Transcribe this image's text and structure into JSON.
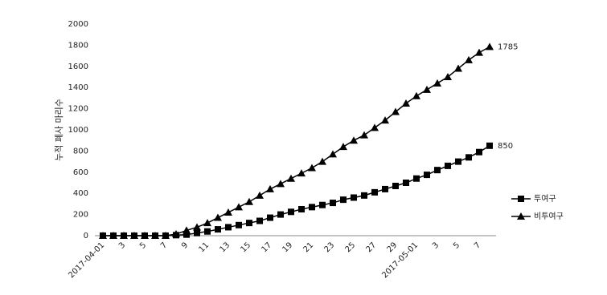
{
  "chart_data": {
    "type": "line",
    "y_label": "누적 폐사 마리수",
    "categories": [
      "2017-04-01",
      null,
      "3",
      null,
      "5",
      null,
      "7",
      null,
      "9",
      null,
      "11",
      null,
      "13",
      null,
      "15",
      null,
      "17",
      null,
      "19",
      null,
      "21",
      null,
      "23",
      null,
      "25",
      null,
      "27",
      null,
      "29",
      null,
      "2017-05-01",
      null,
      "3",
      null,
      "5",
      null,
      "7",
      null
    ],
    "series": [
      {
        "name": "투여구",
        "color": "#000000",
        "marker": "square",
        "values": [
          0,
          0,
          0,
          0,
          0,
          0,
          0,
          5,
          10,
          25,
          40,
          60,
          80,
          100,
          120,
          140,
          170,
          200,
          225,
          250,
          270,
          290,
          310,
          340,
          360,
          380,
          410,
          440,
          470,
          500,
          540,
          575,
          620,
          660,
          700,
          740,
          790,
          850
        ]
      },
      {
        "name": "비투여구",
        "color": "#000000",
        "marker": "triangle",
        "values": [
          0,
          0,
          0,
          0,
          0,
          0,
          0,
          15,
          50,
          80,
          120,
          170,
          220,
          270,
          320,
          380,
          440,
          490,
          540,
          590,
          640,
          700,
          770,
          840,
          900,
          950,
          1020,
          1090,
          1170,
          1250,
          1320,
          1380,
          1440,
          1500,
          1580,
          1660,
          1730,
          1785
        ]
      }
    ],
    "ylim": [
      0,
      2000
    ],
    "yticks": [
      0,
      200,
      400,
      600,
      800,
      1000,
      1200,
      1400,
      1600,
      1800,
      2000
    ],
    "grid": false,
    "legend": "right"
  }
}
